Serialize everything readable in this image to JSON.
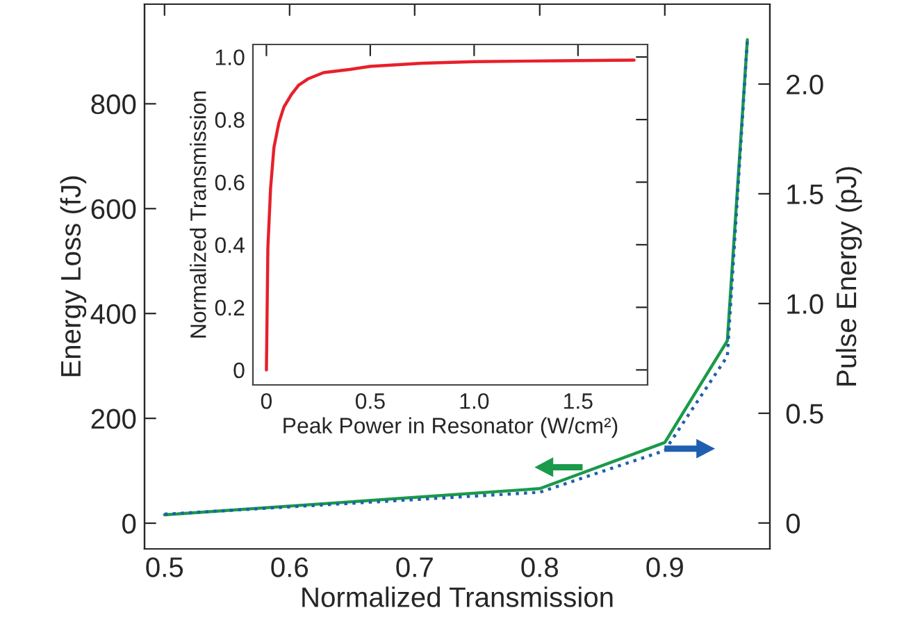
{
  "chart_data": [
    {
      "type": "line",
      "xlabel": "Normalized Transmission",
      "ylabel": "Energy Loss (fJ)",
      "y2label": "Pulse Energy (pJ)",
      "xlim": [
        0.484,
        0.984
      ],
      "xticks": [
        0.5,
        0.6,
        0.7,
        0.8,
        0.9
      ],
      "ylim": [
        -49,
        990
      ],
      "yticks": [
        0,
        200,
        400,
        600,
        800
      ],
      "y2lim": [
        -0.118,
        2.364
      ],
      "y2ticks": [
        0,
        0.5,
        {
          "value": 1,
          "label": "1.0"
        },
        1.5,
        {
          "value": 2,
          "label": "2.0"
        }
      ],
      "series": [
        {
          "color": "#1a9a4a",
          "line_style": "solid",
          "x": [
            0.5,
            0.8,
            0.9,
            0.95,
            0.966
          ],
          "values": [
            16,
            66,
            154,
            348,
            922
          ]
        },
        {
          "color": "#1f5fb0",
          "line_style": "dotted",
          "axis": "y2",
          "x": [
            0.5,
            0.8,
            0.9,
            0.95,
            0.966
          ],
          "values": [
            0.04,
            0.14,
            0.33,
            0.76,
            2.2
          ]
        }
      ]
    },
    {
      "type": "line",
      "xlabel": "Peak Power in Resonator (W/cm²)",
      "ylabel": "Normalized Transmission",
      "xlim": [
        -0.065,
        1.835
      ],
      "xticks": [
        0,
        0.5,
        {
          "value": 1,
          "label": "1.0"
        },
        1.5
      ],
      "ylim": [
        -0.048,
        1.04
      ],
      "yticks": [
        0,
        0.2,
        0.4,
        0.6,
        0.8,
        {
          "value": 1,
          "label": "1.0"
        }
      ],
      "series": [
        {
          "color": "#e8202a",
          "line_style": "solid",
          "x": [
            0,
            0.007,
            0.02,
            0.036,
            0.06,
            0.084,
            0.12,
            0.155,
            0.2,
            0.275,
            0.4,
            0.5,
            0.75,
            1.0,
            1.4,
            1.77
          ],
          "values": [
            0,
            0.39,
            0.58,
            0.71,
            0.79,
            0.84,
            0.88,
            0.91,
            0.93,
            0.95,
            0.96,
            0.97,
            0.98,
            0.985,
            0.988,
            0.99
          ]
        }
      ]
    }
  ]
}
